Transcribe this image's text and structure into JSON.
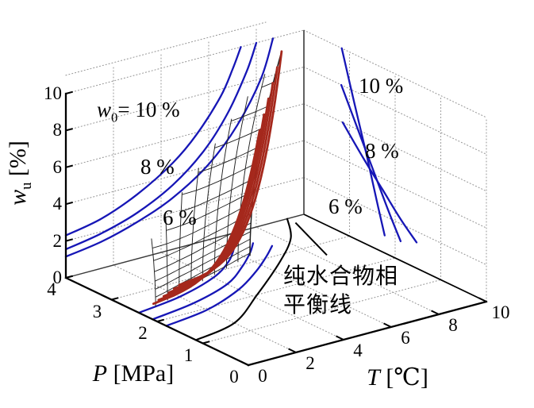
{
  "figure": {
    "colors": {
      "blue": "#1616b6",
      "red": "#a5281c",
      "mesh_line": "#1f1f1f",
      "grid": "#9b9b9b",
      "axis": "#000000",
      "box_edge": "#3a3a3a"
    },
    "labels": {
      "p_axis": {
        "pre": "P",
        "post": " [MPa]"
      },
      "t_axis": {
        "pre": "T",
        "post": " [℃]"
      },
      "w_axis": {
        "pre": "w",
        "sub": "u",
        "post": " [%]"
      },
      "left_wall_w0": {
        "pre": "w",
        "sub": "0",
        "post": "= 10 %"
      },
      "left_wall_8": "8 %",
      "left_wall_6": "6 %",
      "right_wall_10": "10 %",
      "right_wall_8": "8 %",
      "right_wall_6": "6 %",
      "annotation_line1": "纯水合物相",
      "annotation_line2": "平衡线"
    },
    "chart_data": {
      "type": "3d-surface-with-projections",
      "axes": {
        "T": {
          "label": "T [℃]",
          "range": [
            0,
            10
          ],
          "ticks": [
            0,
            2,
            4,
            6,
            8,
            10
          ]
        },
        "P": {
          "label": "P [MPa]",
          "range": [
            0,
            4
          ],
          "ticks": [
            0,
            1,
            2,
            3,
            4
          ]
        },
        "w": {
          "label": "w_u [%]",
          "range": [
            0,
            10
          ],
          "ticks": [
            0,
            2,
            4,
            6,
            8,
            10
          ]
        }
      },
      "grid": {
        "on": true,
        "style": "dotted",
        "left_wall_T": [
          2,
          4,
          6,
          8
        ],
        "left_wall_w": [
          2,
          4,
          6,
          8,
          10,
          11
        ],
        "right_wall_P": [
          0,
          1,
          2,
          3
        ],
        "right_wall_w": [
          2,
          4,
          6,
          8,
          10
        ],
        "floor_T": [
          2,
          4,
          6,
          8
        ],
        "floor_P": [
          1,
          2,
          3
        ]
      },
      "left_wall_curves": {
        "plane": "P=4",
        "series": [
          {
            "name": "w0=10%",
            "T": [
              0,
              1.5,
              3,
              4.5,
              5.5,
              6.5,
              7.0,
              7.35
            ],
            "w": [
              2.3,
              2.7,
              3.5,
              4.7,
              5.9,
              7.6,
              8.9,
              10
            ]
          },
          {
            "name": "w0=8%",
            "T": [
              0,
              1.5,
              3,
              4.5,
              5.8,
              6.8,
              7.6,
              8.0
            ],
            "w": [
              1.55,
              1.9,
              2.5,
              3.5,
              4.9,
              6.6,
              8.6,
              10
            ]
          },
          {
            "name": "w0=6%",
            "T": [
              0,
              1.5,
              3,
              4.5,
              6.0,
              7.2,
              8.2,
              8.7
            ],
            "w": [
              1.15,
              1.45,
              2.0,
              2.8,
              4.1,
              5.8,
              8.0,
              10
            ]
          }
        ]
      },
      "right_wall_curves": {
        "plane": "T=10",
        "series": [
          {
            "name": "10 %",
            "P": [
              3.17,
              2.9,
              2.62,
              2.4,
              2.23
            ],
            "w": [
              10,
              7.4,
              4.8,
              2.6,
              0.95
            ]
          },
          {
            "name": "8 %",
            "P": [
              3.18,
              2.85,
              2.5,
              2.15,
              1.88
            ],
            "w": [
              8,
              6.2,
              4.3,
              2.4,
              1.05
            ]
          },
          {
            "name": "6 %",
            "P": [
              3.15,
              2.7,
              2.28,
              1.9,
              1.53
            ],
            "w": [
              6,
              4.6,
              3.4,
              2.3,
              1.4
            ]
          }
        ]
      },
      "floor_curves": {
        "plane": "w=0",
        "series": [
          {
            "name": "equilibrium w0=10%",
            "color": "blue",
            "T": [
              0,
              2,
              4,
              5.3,
              6.2,
              6.7
            ],
            "P": [
              2.4,
              2.55,
              2.85,
              3.2,
              3.55,
              3.8
            ]
          },
          {
            "name": "equilibrium w0=8%",
            "color": "blue",
            "T": [
              0,
              2,
              4,
              5.4,
              6.4,
              7.0
            ],
            "P": [
              2.1,
              2.25,
              2.55,
              2.95,
              3.3,
              3.55
            ]
          },
          {
            "name": "equilibrium w0=6%",
            "color": "blue",
            "T": [
              0,
              2,
              4,
              5.5,
              6.6,
              7.36
            ],
            "P": [
              1.8,
              1.95,
              2.3,
              2.7,
              3.05,
              3.32
            ]
          },
          {
            "name": "pure hydrate equilibrium",
            "color": "black",
            "T": [
              0,
              2,
              4.2,
              6.7,
              8.3,
              9.3
            ],
            "P": [
              1.15,
              1.35,
              2.0,
              2.8,
              3.4,
              4.0
            ]
          }
        ]
      },
      "mesh_surface": {
        "columns": {
          "T_base": [
            0.8,
            1.475,
            2.15,
            2.825,
            3.5,
            4.175,
            4.85,
            5.525,
            6.2
          ],
          "P_base": [
            2.45,
            2.54,
            2.64,
            2.73,
            2.83,
            2.92,
            3.01,
            3.11,
            3.2
          ],
          "T_top": [
            1.2,
            1.99,
            2.87,
            3.76,
            4.65,
            5.54,
            6.42,
            7.31,
            8.2
          ],
          "P_top": [
            2.75,
            2.85,
            2.95,
            3.05,
            3.15,
            3.26,
            3.36,
            3.45,
            3.55
          ],
          "w_max": [
            3.2,
            4.0,
            4.9,
            5.8,
            6.7,
            7.6,
            8.4,
            9.2,
            10
          ]
        },
        "row_levels": [
          0.15,
          0.5,
          0.9,
          1.3,
          1.75,
          2.25,
          2.8,
          3.4,
          4.05,
          4.8,
          5.6,
          6.5,
          7.5,
          8.6,
          9.8
        ]
      },
      "red_trajectories": {
        "T_base": [
          0.9,
          1.25,
          1.6,
          1.95,
          2.3,
          2.65
        ],
        "P_base": [
          2.55,
          2.62,
          2.69,
          2.76,
          2.83,
          2.9
        ],
        "T_end": [
          6.8,
          7.08,
          7.36,
          7.64,
          7.92,
          8.2
        ],
        "P_end": [
          3.3,
          3.35,
          3.4,
          3.45,
          3.5,
          3.55
        ],
        "w_end": [
          6.5,
          7.2,
          7.9,
          8.6,
          9.3,
          10
        ]
      },
      "annotation_leader_TP": [
        [
          9.3,
          3.82
        ],
        [
          8.32,
          2.62
        ]
      ]
    }
  }
}
